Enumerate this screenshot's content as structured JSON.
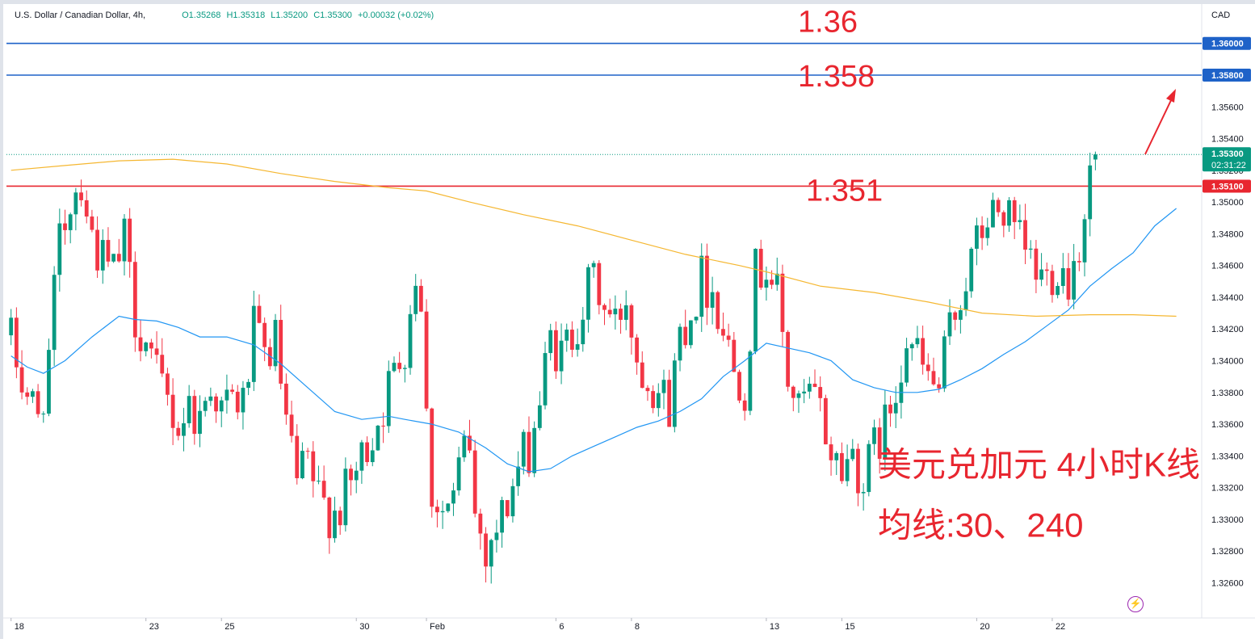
{
  "header": {
    "symbol": "U.S. Dollar / Canadian Dollar, 4h,",
    "open": "O1.35268",
    "high": "H1.35318",
    "low": "L1.35200",
    "close": "C1.35300",
    "change": "+0.00032 (+0.02%)"
  },
  "currency": "CAD",
  "colors": {
    "up": "#089981",
    "down": "#f23645",
    "ma30": "#2196f3",
    "ma240": "#f5b731",
    "hline_blue": "#1e62c8",
    "hline_red": "#e8262f",
    "annotation": "#e8262f"
  },
  "icons": {
    "flash": "lightning-icon"
  },
  "chart_data": {
    "type": "candlestick",
    "timeframe": "4h",
    "ylim": [
      1.325,
      1.362
    ],
    "y_ticks": [
      "1.32600",
      "1.32800",
      "1.33000",
      "1.33200",
      "1.33400",
      "1.33600",
      "1.33800",
      "1.34000",
      "1.34200",
      "1.34400",
      "1.34600",
      "1.34800",
      "1.35000",
      "1.35200",
      "1.35400",
      "1.35600"
    ],
    "x_labels": [
      {
        "label": "18",
        "bar": 0
      },
      {
        "label": "23",
        "bar": 25
      },
      {
        "label": "25",
        "bar": 39
      },
      {
        "label": "30",
        "bar": 64
      },
      {
        "label": "Feb",
        "bar": 77
      },
      {
        "label": "6",
        "bar": 101
      },
      {
        "label": "8",
        "bar": 115
      },
      {
        "label": "13",
        "bar": 140
      },
      {
        "label": "15",
        "bar": 154
      },
      {
        "label": "20",
        "bar": 179
      },
      {
        "label": "22",
        "bar": 193
      }
    ],
    "bar_count": 202,
    "price_labels": [
      {
        "value": "1.36000",
        "price": 1.36,
        "color": "#1e62c8"
      },
      {
        "value": "1.35800",
        "price": 1.358,
        "color": "#1e62c8"
      },
      {
        "value": "1.35300",
        "price": 1.353,
        "color": "#089981",
        "sub": "02:31:22"
      },
      {
        "value": "1.35100",
        "price": 1.351,
        "color": "#e8262f"
      }
    ],
    "horizontal_lines": [
      {
        "price": 1.36,
        "color": "#1e62c8",
        "label": "1.36"
      },
      {
        "price": 1.358,
        "color": "#1e62c8",
        "label": "1.358"
      },
      {
        "price": 1.351,
        "color": "#e8262f",
        "label": "1.351"
      }
    ],
    "current_price": 1.353,
    "keypoints": [
      [
        0,
        1.3412
      ],
      [
        2,
        1.3388
      ],
      [
        5,
        1.3362
      ],
      [
        7,
        1.3402
      ],
      [
        9,
        1.3475
      ],
      [
        11,
        1.3502
      ],
      [
        13,
        1.3515
      ],
      [
        15,
        1.3478
      ],
      [
        17,
        1.3462
      ],
      [
        19,
        1.3455
      ],
      [
        21,
        1.3475
      ],
      [
        23,
        1.3428
      ],
      [
        25,
        1.3412
      ],
      [
        27,
        1.3388
      ],
      [
        29,
        1.3375
      ],
      [
        31,
        1.3358
      ],
      [
        33,
        1.3372
      ],
      [
        35,
        1.3362
      ],
      [
        37,
        1.3388
      ],
      [
        39,
        1.3368
      ],
      [
        41,
        1.3375
      ],
      [
        43,
        1.3372
      ],
      [
        45,
        1.3418
      ],
      [
        47,
        1.3402
      ],
      [
        49,
        1.3412
      ],
      [
        51,
        1.3358
      ],
      [
        53,
        1.3322
      ],
      [
        55,
        1.3335
      ],
      [
        57,
        1.3312
      ],
      [
        59,
        1.3305
      ],
      [
        61,
        1.3308
      ],
      [
        63,
        1.3322
      ],
      [
        65,
        1.3338
      ],
      [
        67,
        1.3355
      ],
      [
        69,
        1.3372
      ],
      [
        71,
        1.3392
      ],
      [
        73,
        1.3412
      ],
      [
        75,
        1.3455
      ],
      [
        76,
        1.3442
      ],
      [
        77,
        1.3365
      ],
      [
        78,
        1.3318
      ],
      [
        80,
        1.3305
      ],
      [
        82,
        1.3312
      ],
      [
        84,
        1.3345
      ],
      [
        85,
        1.3348
      ],
      [
        86,
        1.3302
      ],
      [
        88,
        1.3282
      ],
      [
        90,
        1.3295
      ],
      [
        92,
        1.331
      ],
      [
        94,
        1.3332
      ],
      [
        96,
        1.3345
      ],
      [
        98,
        1.3375
      ],
      [
        100,
        1.3412
      ],
      [
        102,
        1.3402
      ],
      [
        104,
        1.3418
      ],
      [
        106,
        1.3435
      ],
      [
        108,
        1.3452
      ],
      [
        110,
        1.3432
      ],
      [
        112,
        1.3422
      ],
      [
        114,
        1.3442
      ],
      [
        116,
        1.3402
      ],
      [
        118,
        1.3392
      ],
      [
        120,
        1.3382
      ],
      [
        122,
        1.3372
      ],
      [
        124,
        1.3418
      ],
      [
        126,
        1.3432
      ],
      [
        128,
        1.3452
      ],
      [
        130,
        1.3445
      ],
      [
        132,
        1.3422
      ],
      [
        134,
        1.3395
      ],
      [
        136,
        1.3385
      ],
      [
        138,
        1.3455
      ],
      [
        140,
        1.3462
      ],
      [
        142,
        1.3442
      ],
      [
        144,
        1.3388
      ],
      [
        146,
        1.3368
      ],
      [
        148,
        1.3378
      ],
      [
        150,
        1.3368
      ],
      [
        152,
        1.3342
      ],
      [
        154,
        1.3332
      ],
      [
        156,
        1.3342
      ],
      [
        158,
        1.3322
      ],
      [
        160,
        1.3345
      ],
      [
        162,
        1.3358
      ],
      [
        164,
        1.3385
      ],
      [
        166,
        1.3418
      ],
      [
        168,
        1.3402
      ],
      [
        170,
        1.3388
      ],
      [
        172,
        1.3382
      ],
      [
        174,
        1.3418
      ],
      [
        176,
        1.3442
      ],
      [
        178,
        1.3462
      ],
      [
        180,
        1.3482
      ],
      [
        182,
        1.3492
      ],
      [
        184,
        1.3495
      ],
      [
        186,
        1.3478
      ],
      [
        188,
        1.3468
      ],
      [
        190,
        1.3455
      ],
      [
        192,
        1.3452
      ],
      [
        194,
        1.3462
      ],
      [
        196,
        1.3452
      ],
      [
        198,
        1.3475
      ],
      [
        200,
        1.3518
      ],
      [
        202,
        1.3532
      ],
      [
        204,
        1.3542
      ],
      [
        206,
        1.3545
      ],
      [
        208,
        1.3548
      ],
      [
        210,
        1.353
      ]
    ],
    "series": [
      {
        "name": "MA30",
        "color": "#2196f3",
        "points": [
          [
            0,
            1.3403
          ],
          [
            3,
            1.3396
          ],
          [
            6,
            1.3392
          ],
          [
            10,
            1.34
          ],
          [
            15,
            1.3415
          ],
          [
            20,
            1.3428
          ],
          [
            23,
            1.3426
          ],
          [
            27,
            1.3425
          ],
          [
            31,
            1.3421
          ],
          [
            35,
            1.3415
          ],
          [
            40,
            1.3415
          ],
          [
            45,
            1.341
          ],
          [
            50,
            1.3398
          ],
          [
            55,
            1.3383
          ],
          [
            60,
            1.3368
          ],
          [
            65,
            1.3363
          ],
          [
            70,
            1.3365
          ],
          [
            73,
            1.3363
          ],
          [
            78,
            1.336
          ],
          [
            83,
            1.3355
          ],
          [
            88,
            1.3345
          ],
          [
            92,
            1.3335
          ],
          [
            96,
            1.333
          ],
          [
            100,
            1.3332
          ],
          [
            104,
            1.334
          ],
          [
            108,
            1.3346
          ],
          [
            112,
            1.3352
          ],
          [
            116,
            1.3358
          ],
          [
            120,
            1.3362
          ],
          [
            124,
            1.3368
          ],
          [
            128,
            1.3376
          ],
          [
            132,
            1.339
          ],
          [
            136,
            1.34
          ],
          [
            140,
            1.3411
          ],
          [
            144,
            1.3408
          ],
          [
            148,
            1.3405
          ],
          [
            152,
            1.34
          ],
          [
            156,
            1.3388
          ],
          [
            160,
            1.3383
          ],
          [
            164,
            1.338
          ],
          [
            168,
            1.338
          ],
          [
            172,
            1.3382
          ],
          [
            176,
            1.3388
          ],
          [
            180,
            1.3395
          ],
          [
            184,
            1.3404
          ],
          [
            188,
            1.3412
          ],
          [
            192,
            1.3422
          ],
          [
            196,
            1.3432
          ],
          [
            200,
            1.3447
          ],
          [
            204,
            1.3458
          ],
          [
            208,
            1.3468
          ],
          [
            212,
            1.3485
          ],
          [
            216,
            1.3496
          ]
        ]
      },
      {
        "name": "MA240",
        "color": "#f5b731",
        "points": [
          [
            0,
            1.352
          ],
          [
            10,
            1.3523
          ],
          [
            20,
            1.3526
          ],
          [
            30,
            1.3527
          ],
          [
            40,
            1.3524
          ],
          [
            50,
            1.3518
          ],
          [
            60,
            1.3513
          ],
          [
            70,
            1.3509
          ],
          [
            77,
            1.3507
          ],
          [
            85,
            1.35
          ],
          [
            95,
            1.3492
          ],
          [
            105,
            1.3485
          ],
          [
            115,
            1.3476
          ],
          [
            125,
            1.3467
          ],
          [
            135,
            1.346
          ],
          [
            140,
            1.3456
          ],
          [
            150,
            1.3447
          ],
          [
            160,
            1.3443
          ],
          [
            170,
            1.3437
          ],
          [
            180,
            1.343
          ],
          [
            190,
            1.3428
          ],
          [
            200,
            1.3429
          ],
          [
            208,
            1.3429
          ],
          [
            216,
            1.3428
          ]
        ]
      }
    ],
    "annotations": [
      {
        "text": "1.36",
        "price": 1.36
      },
      {
        "text": "1.358",
        "price": 1.358
      },
      {
        "text": "1.351",
        "price": 1.351
      },
      {
        "text": "美元兑加元 4小时K线",
        "price": 1.3322
      },
      {
        "text": "均线:30、240",
        "price": 1.3287
      }
    ]
  }
}
